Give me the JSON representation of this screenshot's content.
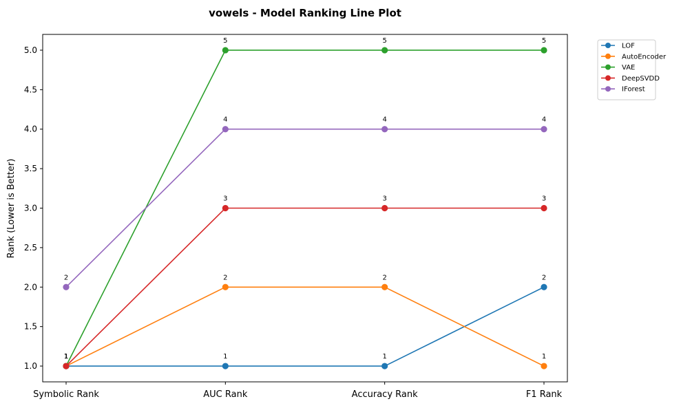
{
  "chart_data": {
    "type": "line",
    "title": "vowels - Model Ranking Line Plot",
    "xlabel": "",
    "ylabel": "Rank (Lower is Better)",
    "categories": [
      "Symbolic Rank",
      "AUC Rank",
      "Accuracy Rank",
      "F1 Rank"
    ],
    "ylim": [
      0.8,
      5.2
    ],
    "yticks": [
      1.0,
      1.5,
      2.0,
      2.5,
      3.0,
      3.5,
      4.0,
      4.5,
      5.0
    ],
    "ytick_labels": [
      "1.0",
      "1.5",
      "2.0",
      "2.5",
      "3.0",
      "3.5",
      "4.0",
      "4.5",
      "5.0"
    ],
    "grid": false,
    "legend_position": "outside-top-right",
    "series": [
      {
        "name": "LOF",
        "color": "#1f77b4",
        "values": [
          1,
          1,
          1,
          2
        ],
        "labels": [
          "1",
          "1",
          "1",
          "2"
        ]
      },
      {
        "name": "AutoEncoder",
        "color": "#ff7f0e",
        "values": [
          1,
          2,
          2,
          1
        ],
        "labels": [
          "1",
          "2",
          "2",
          "1"
        ]
      },
      {
        "name": "VAE",
        "color": "#2ca02c",
        "values": [
          1,
          5,
          5,
          5
        ],
        "labels": [
          "1",
          "5",
          "5",
          "5"
        ]
      },
      {
        "name": "DeepSVDD",
        "color": "#d62728",
        "values": [
          1,
          3,
          3,
          3
        ],
        "labels": [
          "1",
          "3",
          "3",
          "3"
        ]
      },
      {
        "name": "IForest",
        "color": "#9467bd",
        "values": [
          2,
          4,
          4,
          4
        ],
        "labels": [
          "2",
          "4",
          "4",
          "4"
        ]
      }
    ]
  }
}
